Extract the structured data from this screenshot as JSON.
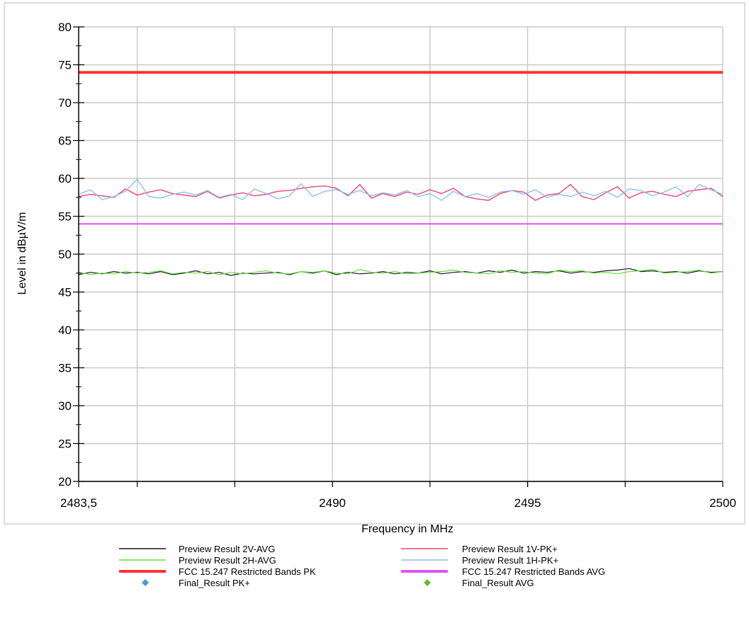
{
  "chart_data": {
    "type": "line",
    "title": "",
    "xlabel": "Frequency in MHz",
    "ylabel": "Level in dBµV/m",
    "xlim": [
      2483.5,
      2500
    ],
    "ylim": [
      20,
      80
    ],
    "x_ticks": [
      2483.5,
      2490,
      2495,
      2500
    ],
    "x_tick_labels": [
      "2483,5",
      "2490",
      "2495",
      "2500"
    ],
    "y_ticks": [
      20,
      25,
      30,
      35,
      40,
      45,
      50,
      55,
      60,
      65,
      70,
      75,
      80
    ],
    "grid": true,
    "x": [
      2483.5,
      2483.8,
      2484.1,
      2484.4,
      2484.7,
      2485.0,
      2485.3,
      2485.6,
      2485.9,
      2486.2,
      2486.5,
      2486.8,
      2487.1,
      2487.4,
      2487.7,
      2488.0,
      2488.3,
      2488.6,
      2488.9,
      2489.2,
      2489.5,
      2489.8,
      2490.1,
      2490.4,
      2490.7,
      2491.0,
      2491.3,
      2491.6,
      2491.9,
      2492.2,
      2492.5,
      2492.8,
      2493.1,
      2493.4,
      2493.7,
      2494.0,
      2494.3,
      2494.6,
      2494.9,
      2495.2,
      2495.5,
      2495.8,
      2496.1,
      2496.4,
      2496.7,
      2497.0,
      2497.3,
      2497.6,
      2497.9,
      2498.2,
      2498.5,
      2498.8,
      2499.1,
      2499.4,
      2499.7,
      2500.0
    ],
    "series": [
      {
        "name": "Preview Result 2V-AVG",
        "color": "#1a1a1a",
        "width": 1.2,
        "values": [
          47.3,
          47.6,
          47.4,
          47.7,
          47.5,
          47.6,
          47.4,
          47.7,
          47.3,
          47.5,
          47.8,
          47.4,
          47.6,
          47.2,
          47.5,
          47.4,
          47.5,
          47.6,
          47.3,
          47.7,
          47.5,
          47.8,
          47.3,
          47.6,
          47.4,
          47.5,
          47.7,
          47.4,
          47.6,
          47.5,
          47.8,
          47.4,
          47.6,
          47.7,
          47.5,
          47.8,
          47.6,
          47.9,
          47.5,
          47.7,
          47.6,
          47.8,
          47.5,
          47.7,
          47.6,
          47.8,
          47.9,
          48.1,
          47.7,
          47.8,
          47.6,
          47.7,
          47.5,
          47.8,
          47.6,
          47.7
        ]
      },
      {
        "name": "Preview Result 2H-AVG",
        "color": "#66dd44",
        "width": 1.2,
        "values": [
          47.6,
          47.3,
          47.5,
          47.4,
          47.7,
          47.5,
          47.6,
          47.8,
          47.4,
          47.6,
          47.5,
          47.7,
          47.3,
          47.6,
          47.4,
          47.6,
          47.8,
          47.5,
          47.4,
          47.7,
          47.6,
          47.8,
          47.5,
          47.4,
          48.0,
          47.6,
          47.5,
          47.7,
          47.4,
          47.5,
          47.6,
          47.7,
          47.9,
          47.6,
          47.5,
          47.4,
          47.8,
          47.6,
          47.7,
          47.5,
          47.4,
          47.9,
          47.7,
          47.8,
          47.5,
          47.6,
          47.4,
          47.7,
          47.8,
          48.0,
          47.5,
          47.6,
          47.7,
          47.9,
          47.5,
          47.7
        ]
      },
      {
        "name": "Preview Result 1V-PK+",
        "color": "#ee4477",
        "width": 1.4,
        "values": [
          57.6,
          57.9,
          57.7,
          57.5,
          58.6,
          57.8,
          58.2,
          58.5,
          58.0,
          57.8,
          57.6,
          58.3,
          57.4,
          57.8,
          58.1,
          57.7,
          57.9,
          58.3,
          58.4,
          58.7,
          58.9,
          59.0,
          58.7,
          57.7,
          59.2,
          57.4,
          58.0,
          57.6,
          58.2,
          57.9,
          58.5,
          58.0,
          58.7,
          57.6,
          57.3,
          57.1,
          58.0,
          58.4,
          58.2,
          57.1,
          57.8,
          58.0,
          59.2,
          57.6,
          57.2,
          58.1,
          58.9,
          57.4,
          58.1,
          58.3,
          57.9,
          57.6,
          58.3,
          58.5,
          58.7,
          57.6
        ]
      },
      {
        "name": "Preview Result 1H-PK+",
        "color": "#88bbee",
        "width": 1.3,
        "values": [
          57.9,
          58.5,
          57.2,
          57.6,
          58.3,
          59.9,
          57.6,
          57.4,
          57.9,
          58.2,
          57.8,
          58.4,
          57.5,
          57.9,
          57.2,
          58.6,
          58.0,
          57.3,
          57.7,
          59.3,
          57.6,
          58.3,
          58.5,
          57.9,
          58.4,
          57.7,
          58.1,
          57.8,
          58.4,
          57.6,
          58.0,
          57.1,
          58.3,
          57.6,
          58.0,
          57.5,
          58.2,
          58.4,
          57.9,
          58.5,
          57.5,
          57.9,
          57.6,
          58.2,
          57.7,
          58.3,
          57.5,
          58.6,
          58.4,
          57.7,
          58.2,
          58.9,
          57.6,
          59.2,
          58.5,
          57.9
        ]
      },
      {
        "name": "FCC 15.247 Restricted Bands PK",
        "color": "#ff3333",
        "width": 4,
        "values": [
          74,
          74
        ],
        "x": [
          2483.5,
          2500
        ]
      },
      {
        "name": "FCC 15.247 Restricted Bands AVG",
        "color": "#dd55ee",
        "width": 2,
        "values": [
          54,
          54
        ],
        "x": [
          2483.5,
          2500
        ]
      }
    ],
    "markers": [
      {
        "name": "Final_Result PK+",
        "color": "#4499dd",
        "shape": "diamond"
      },
      {
        "name": "Final_Result AVG",
        "color": "#66bb33",
        "shape": "diamond"
      }
    ],
    "legend_position": "bottom"
  },
  "legend": {
    "items": [
      {
        "label": "Preview Result 2V-AVG",
        "color": "#1a1a1a",
        "kind": "line-thin"
      },
      {
        "label": "Preview Result 1V-PK+",
        "color": "#ee4477",
        "kind": "line-thin"
      },
      {
        "label": "Preview Result 2H-AVG",
        "color": "#66dd44",
        "kind": "line-thin"
      },
      {
        "label": "Preview Result 1H-PK+",
        "color": "#88bbee",
        "kind": "line-thin"
      },
      {
        "label": "FCC 15.247 Restricted Bands PK",
        "color": "#ff3333",
        "kind": "line-thick"
      },
      {
        "label": "FCC 15.247 Restricted Bands AVG",
        "color": "#dd55ee",
        "kind": "line-thick"
      },
      {
        "label": "Final_Result PK+",
        "color": "#4499dd",
        "kind": "diamond"
      },
      {
        "label": "Final_Result AVG",
        "color": "#66bb33",
        "kind": "diamond"
      }
    ]
  }
}
